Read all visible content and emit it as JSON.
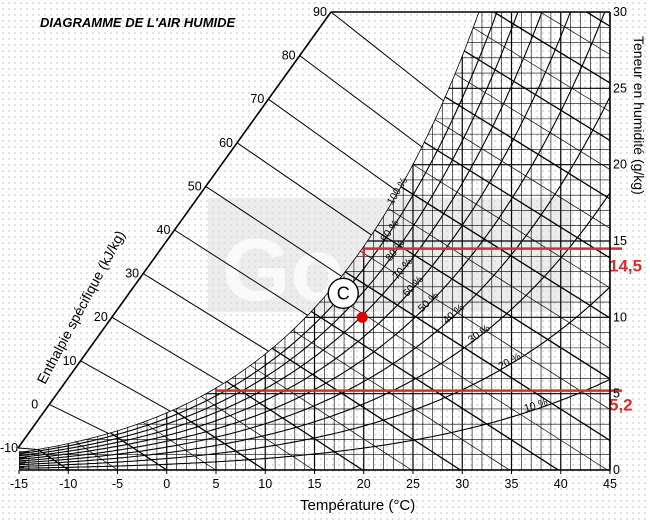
{
  "chart_data": {
    "type": "psychrometric",
    "title": "DIAGRAMME DE L'AIR HUMIDE",
    "xlabel": "Température (°C)",
    "ylabel_left": "Enthalpie spécifique (kJ/kg)",
    "ylabel_right": "Teneur en humidité (g/kg)",
    "xlim": [
      -15,
      45
    ],
    "ylim": [
      0,
      30
    ],
    "x_ticks": [
      -15,
      -10,
      -5,
      0,
      5,
      10,
      15,
      20,
      25,
      30,
      35,
      40,
      45
    ],
    "x_tick_labels": [
      "-15",
      "-10",
      "-5",
      "0",
      "5",
      "10",
      "15",
      "20",
      "25",
      "30",
      "35",
      "40",
      "45"
    ],
    "y_ticks": [
      0,
      5,
      10,
      15,
      20,
      25,
      30
    ],
    "y_tick_labels": [
      "0",
      "5",
      "10",
      "15",
      "20",
      "25",
      "30"
    ],
    "enthalpy_values": [
      -10,
      0,
      10,
      20,
      30,
      40,
      50,
      60,
      70,
      80,
      90
    ],
    "enthalpy_labels": [
      "-10",
      "0",
      "10",
      "20",
      "30",
      "40",
      "50",
      "60",
      "70",
      "80",
      "90"
    ],
    "rh_values": [
      10,
      20,
      30,
      40,
      50,
      60,
      70,
      80,
      90,
      100
    ],
    "rh_labels": [
      "10 %",
      "20 %",
      "30 %",
      "40 %",
      "50 %",
      "60 %",
      "70 %",
      "80 %",
      "90 %",
      "100 %"
    ],
    "grid": true,
    "point": {
      "label": "C",
      "temperature": 20,
      "humidity": 10,
      "color": "#e00000"
    },
    "annotations": [
      {
        "label": "14,5",
        "humidity": 14.5,
        "x_start": 20,
        "color": "#d32f2f"
      },
      {
        "label": "5,2",
        "humidity": 5.2,
        "x_start": 5,
        "color": "#d32f2f"
      }
    ],
    "watermark": "Go"
  }
}
